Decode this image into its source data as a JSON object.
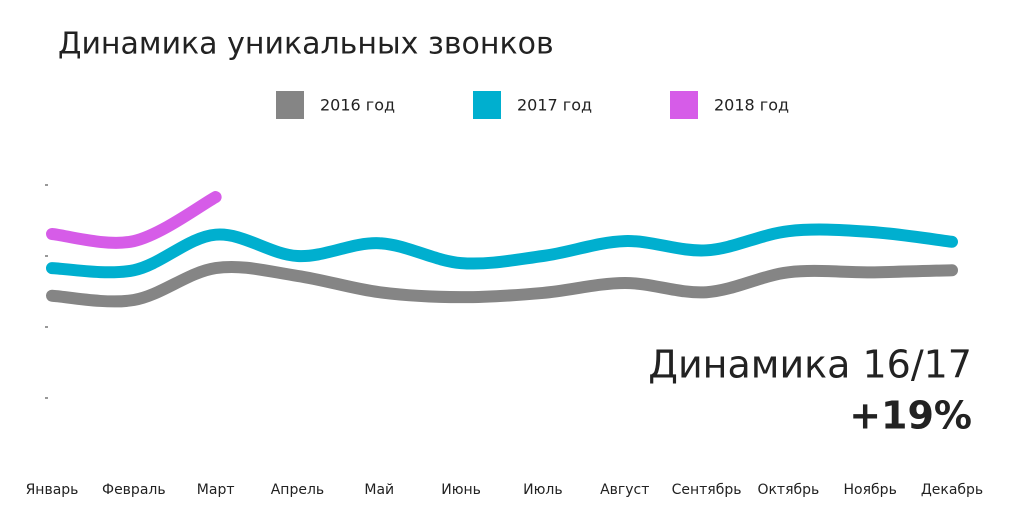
{
  "chart_data": {
    "type": "line",
    "title": "Динамика уникальных звонков",
    "categories": [
      "Январь",
      "Февраль",
      "Март",
      "Апрель",
      "Май",
      "Июнь",
      "Июль",
      "Август",
      "Сентябрь",
      "Октябрь",
      "Ноябрь",
      "Декабрь"
    ],
    "series": [
      {
        "name": "2016 год",
        "color": "#858585",
        "values": [
          1.44,
          1.38,
          1.83,
          1.72,
          1.49,
          1.42,
          1.48,
          1.62,
          1.49,
          1.77,
          1.77,
          1.8
        ]
      },
      {
        "name": "2017 год",
        "color": "#00afcf",
        "values": [
          1.83,
          1.8,
          2.3,
          2.0,
          2.18,
          1.9,
          2.0,
          2.21,
          2.08,
          2.35,
          2.34,
          2.2
        ]
      },
      {
        "name": "2018 год",
        "color": "#d65ce8",
        "values": [
          2.31,
          2.21,
          2.83,
          null,
          null,
          null,
          null,
          null,
          null,
          null,
          null,
          null
        ]
      }
    ],
    "ylim": [
      0,
      3
    ],
    "yticks": [
      0,
      1,
      2,
      3
    ],
    "annotations": [
      "Динамика 16/17",
      "+19%"
    ],
    "annotation_colors": [
      "#111111",
      "#f45c4a"
    ]
  }
}
